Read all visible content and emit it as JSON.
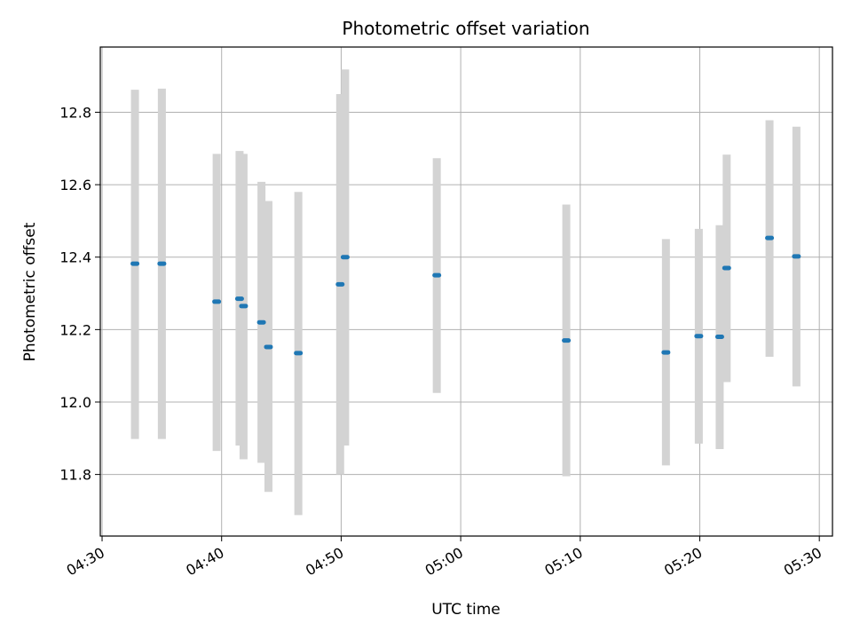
{
  "chart_data": {
    "type": "scatter",
    "title": "Photometric offset variation",
    "xlabel": "UTC time",
    "ylabel": "Photometric offset",
    "x_unit": "UTC time (HH:MM)",
    "xlim": [
      "04:30",
      "05:30"
    ],
    "ylim": [
      11.63,
      12.98
    ],
    "grid": true,
    "x_ticks": [
      "04:30",
      "04:40",
      "04:50",
      "05:00",
      "05:10",
      "05:20",
      "05:30"
    ],
    "y_ticks": [
      "11.8",
      "12.0",
      "12.2",
      "12.4",
      "12.6",
      "12.8"
    ],
    "colors": {
      "point": "#1f77b4",
      "errorbar": "#d3d3d3",
      "grid": "#b0b0b0",
      "axis": "#000000"
    },
    "points": [
      {
        "time": "04:32:45",
        "value": 12.382,
        "low": 11.898,
        "high": 12.862
      },
      {
        "time": "04:35:00",
        "value": 12.382,
        "low": 11.898,
        "high": 12.865
      },
      {
        "time": "04:39:35",
        "value": 12.277,
        "low": 11.865,
        "high": 12.685
      },
      {
        "time": "04:41:30",
        "value": 12.285,
        "low": 11.88,
        "high": 12.693
      },
      {
        "time": "04:41:50",
        "value": 12.265,
        "low": 11.842,
        "high": 12.685
      },
      {
        "time": "04:43:20",
        "value": 12.22,
        "low": 11.832,
        "high": 12.608
      },
      {
        "time": "04:43:55",
        "value": 12.152,
        "low": 11.752,
        "high": 12.555
      },
      {
        "time": "04:46:25",
        "value": 12.135,
        "low": 11.688,
        "high": 12.58
      },
      {
        "time": "04:49:55",
        "value": 12.325,
        "low": 11.8,
        "high": 12.85
      },
      {
        "time": "04:50:20",
        "value": 12.4,
        "low": 11.88,
        "high": 12.918
      },
      {
        "time": "04:58:00",
        "value": 12.35,
        "low": 12.025,
        "high": 12.673
      },
      {
        "time": "05:08:50",
        "value": 12.17,
        "low": 11.795,
        "high": 12.545
      },
      {
        "time": "05:17:10",
        "value": 12.137,
        "low": 11.825,
        "high": 12.45
      },
      {
        "time": "05:19:55",
        "value": 12.182,
        "low": 11.885,
        "high": 12.478
      },
      {
        "time": "05:21:40",
        "value": 12.18,
        "low": 11.87,
        "high": 12.488
      },
      {
        "time": "05:22:15",
        "value": 12.37,
        "low": 12.055,
        "high": 12.683
      },
      {
        "time": "05:25:50",
        "value": 12.453,
        "low": 12.125,
        "high": 12.778
      },
      {
        "time": "05:28:05",
        "value": 12.402,
        "low": 12.043,
        "high": 12.76
      }
    ]
  }
}
